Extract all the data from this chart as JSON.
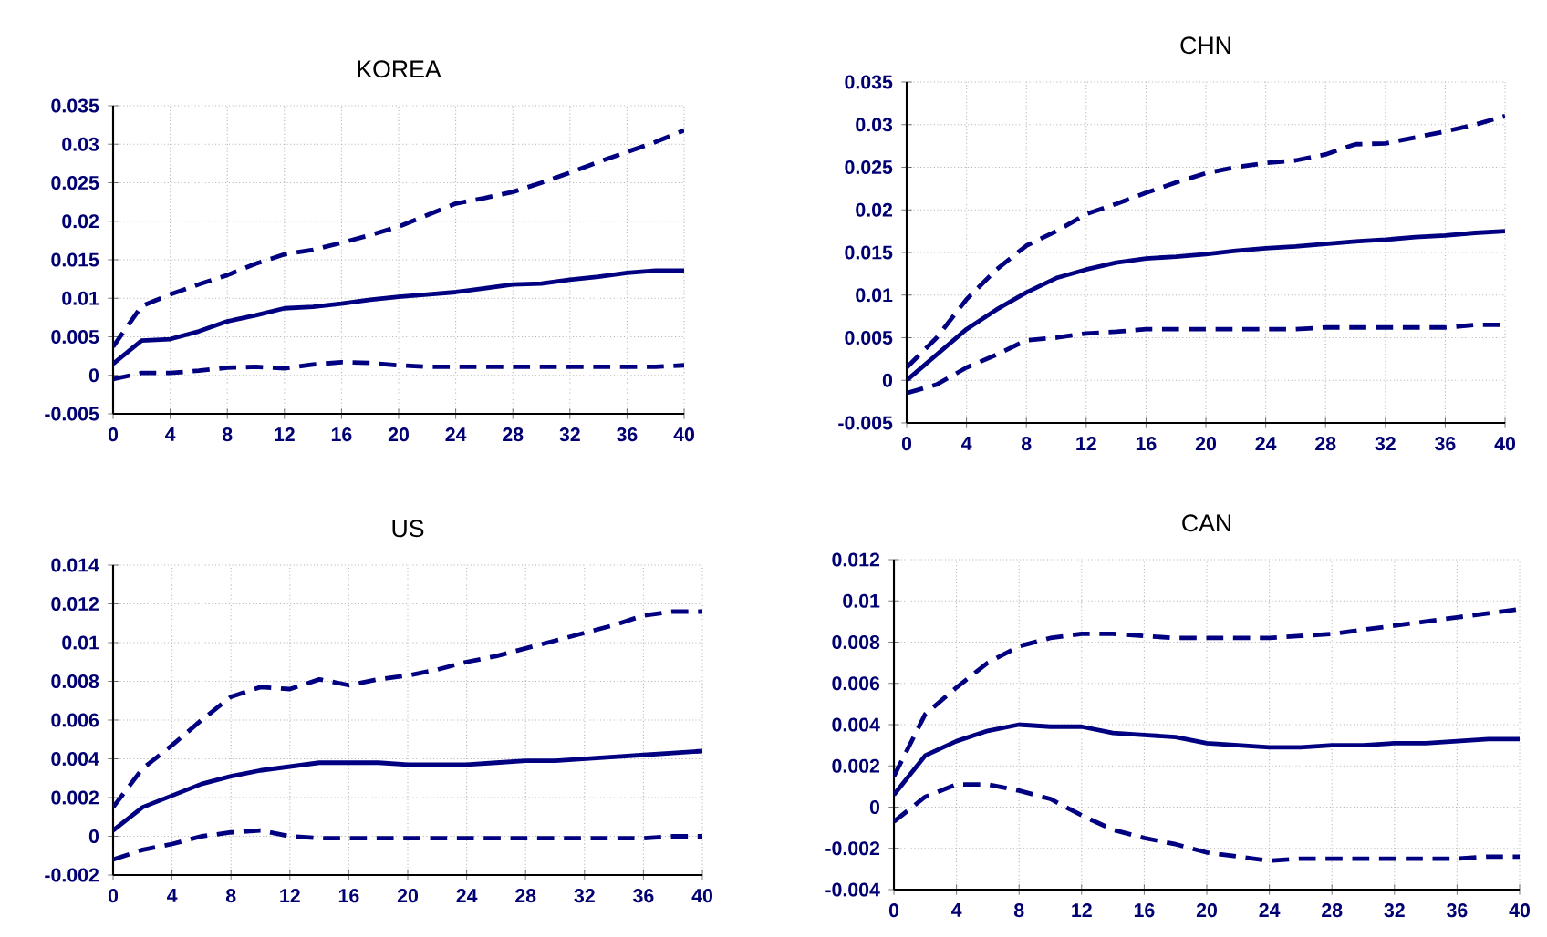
{
  "chart_data": [
    {
      "type": "line",
      "title": "KOREA",
      "x": [
        0,
        2,
        4,
        6,
        8,
        10,
        12,
        14,
        16,
        18,
        20,
        22,
        24,
        26,
        28,
        30,
        32,
        34,
        36,
        38,
        40
      ],
      "xlim": [
        0,
        40
      ],
      "xticks": [
        0,
        4,
        8,
        12,
        16,
        20,
        24,
        28,
        32,
        36,
        40
      ],
      "ylim": [
        -0.005,
        0.035
      ],
      "yticks": [
        -0.005,
        0,
        0.005,
        0.01,
        0.015,
        0.02,
        0.025,
        0.03,
        0.035
      ],
      "grid": true,
      "series": [
        {
          "color": "#000080",
          "line_style": "solid",
          "values": [
            0.0015,
            0.0045,
            0.0047,
            0.0057,
            0.007,
            0.0078,
            0.0087,
            0.0089,
            0.0093,
            0.0098,
            0.0102,
            0.0105,
            0.0108,
            0.0113,
            0.0118,
            0.0119,
            0.0124,
            0.0128,
            0.0133,
            0.0136,
            0.0136
          ]
        },
        {
          "color": "#000080",
          "line_style": "dashed",
          "values": [
            0.0037,
            0.009,
            0.0105,
            0.0118,
            0.013,
            0.0145,
            0.0157,
            0.0163,
            0.0172,
            0.0182,
            0.0193,
            0.0208,
            0.0223,
            0.023,
            0.0238,
            0.025,
            0.0263,
            0.0277,
            0.029,
            0.0303,
            0.0318
          ]
        },
        {
          "color": "#000080",
          "line_style": "dashed",
          "values": [
            -0.0005,
            0.0003,
            0.0003,
            0.0006,
            0.001,
            0.0011,
            0.0009,
            0.0014,
            0.0017,
            0.0016,
            0.0013,
            0.0011,
            0.0011,
            0.0011,
            0.0011,
            0.0011,
            0.0011,
            0.0011,
            0.0011,
            0.0011,
            0.0013
          ]
        }
      ]
    },
    {
      "type": "line",
      "title": "CHN",
      "x": [
        0,
        2,
        4,
        6,
        8,
        10,
        12,
        14,
        16,
        18,
        20,
        22,
        24,
        26,
        28,
        30,
        32,
        34,
        36,
        38,
        40
      ],
      "xlim": [
        0,
        40
      ],
      "xticks": [
        0,
        4,
        8,
        12,
        16,
        20,
        24,
        28,
        32,
        36,
        40
      ],
      "ylim": [
        -0.005,
        0.035
      ],
      "yticks": [
        -0.005,
        0,
        0.005,
        0.01,
        0.015,
        0.02,
        0.025,
        0.03,
        0.035
      ],
      "grid": true,
      "series": [
        {
          "color": "#000080",
          "line_style": "solid",
          "values": [
            0,
            0.003,
            0.006,
            0.0083,
            0.0103,
            0.012,
            0.013,
            0.0138,
            0.0143,
            0.0145,
            0.0148,
            0.0152,
            0.0155,
            0.0157,
            0.016,
            0.0163,
            0.0165,
            0.0168,
            0.017,
            0.0173,
            0.0175
          ]
        },
        {
          "color": "#000080",
          "line_style": "dashed",
          "values": [
            0.0015,
            0.005,
            0.0095,
            0.013,
            0.0158,
            0.0175,
            0.0195,
            0.0207,
            0.022,
            0.0232,
            0.0243,
            0.025,
            0.0255,
            0.0258,
            0.0265,
            0.0277,
            0.0278,
            0.0285,
            0.0292,
            0.03,
            0.031
          ]
        },
        {
          "color": "#000080",
          "line_style": "dashed",
          "values": [
            -0.0015,
            -0.0005,
            0.0015,
            0.003,
            0.0047,
            0.005,
            0.0055,
            0.0057,
            0.006,
            0.006,
            0.006,
            0.006,
            0.006,
            0.006,
            0.0062,
            0.0062,
            0.0062,
            0.0062,
            0.0062,
            0.0065,
            0.0065
          ]
        }
      ]
    },
    {
      "type": "line",
      "title": "US",
      "x": [
        0,
        2,
        4,
        6,
        8,
        10,
        12,
        14,
        16,
        18,
        20,
        22,
        24,
        26,
        28,
        30,
        32,
        34,
        36,
        38,
        40
      ],
      "xlim": [
        0,
        40
      ],
      "xticks": [
        0,
        4,
        8,
        12,
        16,
        20,
        24,
        28,
        32,
        36,
        40
      ],
      "ylim": [
        -0.002,
        0.014
      ],
      "yticks": [
        -0.002,
        0,
        0.002,
        0.004,
        0.006,
        0.008,
        0.01,
        0.012,
        0.014
      ],
      "grid": true,
      "series": [
        {
          "color": "#000080",
          "line_style": "solid",
          "values": [
            0.0003,
            0.0015,
            0.0021,
            0.0027,
            0.0031,
            0.0034,
            0.0036,
            0.0038,
            0.0038,
            0.0038,
            0.0037,
            0.0037,
            0.0037,
            0.0038,
            0.0039,
            0.0039,
            0.004,
            0.0041,
            0.0042,
            0.0043,
            0.0044
          ]
        },
        {
          "color": "#000080",
          "line_style": "dashed",
          "values": [
            0.0015,
            0.0035,
            0.0047,
            0.006,
            0.0072,
            0.0077,
            0.0076,
            0.0081,
            0.0078,
            0.0081,
            0.0083,
            0.0086,
            0.009,
            0.0093,
            0.0097,
            0.0101,
            0.0105,
            0.0109,
            0.0114,
            0.0116,
            0.0116
          ]
        },
        {
          "color": "#000080",
          "line_style": "dashed",
          "values": [
            -0.0012,
            -0.0007,
            -0.0004,
            0.0,
            0.0002,
            0.0003,
            0.0,
            -0.0001,
            -0.0001,
            -0.0001,
            -0.0001,
            -0.0001,
            -0.0001,
            -0.0001,
            -0.0001,
            -0.0001,
            -0.0001,
            -0.0001,
            -0.0001,
            0.0,
            0.0
          ]
        }
      ]
    },
    {
      "type": "line",
      "title": "CAN",
      "x": [
        0,
        2,
        4,
        6,
        8,
        10,
        12,
        14,
        16,
        18,
        20,
        22,
        24,
        26,
        28,
        30,
        32,
        34,
        36,
        38,
        40
      ],
      "xlim": [
        0,
        40
      ],
      "xticks": [
        0,
        4,
        8,
        12,
        16,
        20,
        24,
        28,
        32,
        36,
        40
      ],
      "ylim": [
        -0.004,
        0.012
      ],
      "yticks": [
        -0.004,
        -0.002,
        0,
        0.002,
        0.004,
        0.006,
        0.008,
        0.01,
        0.012
      ],
      "grid": true,
      "series": [
        {
          "color": "#000080",
          "line_style": "solid",
          "values": [
            0.0006,
            0.0025,
            0.0032,
            0.0037,
            0.004,
            0.0039,
            0.0039,
            0.0036,
            0.0035,
            0.0034,
            0.0031,
            0.003,
            0.0029,
            0.0029,
            0.003,
            0.003,
            0.0031,
            0.0031,
            0.0032,
            0.0033,
            0.0033
          ]
        },
        {
          "color": "#000080",
          "line_style": "dashed",
          "values": [
            0.0015,
            0.0045,
            0.0058,
            0.007,
            0.0078,
            0.0082,
            0.0084,
            0.0084,
            0.0083,
            0.0082,
            0.0082,
            0.0082,
            0.0082,
            0.0083,
            0.0084,
            0.0086,
            0.0088,
            0.009,
            0.0092,
            0.0094,
            0.0096
          ]
        },
        {
          "color": "#000080",
          "line_style": "dashed",
          "values": [
            -0.0007,
            0.0005,
            0.0011,
            0.0011,
            0.0008,
            0.0004,
            -0.0004,
            -0.0011,
            -0.0015,
            -0.0018,
            -0.0022,
            -0.0024,
            -0.0026,
            -0.0025,
            -0.0025,
            -0.0025,
            -0.0025,
            -0.0025,
            -0.0025,
            -0.0024,
            -0.0024
          ]
        }
      ]
    }
  ]
}
